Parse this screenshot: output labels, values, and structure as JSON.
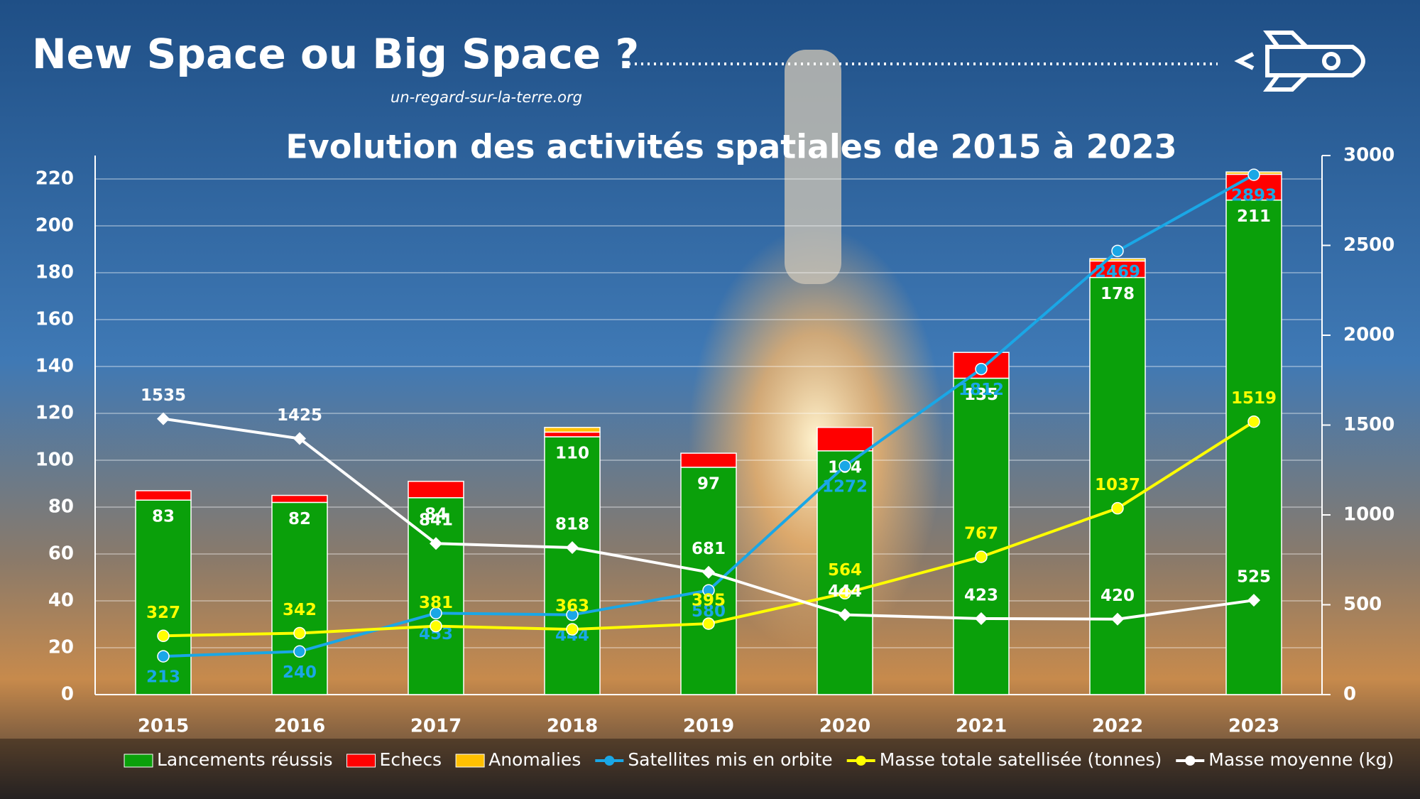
{
  "title": "New Space ou Big Space ?",
  "site": "un-regard-sur-la-terre.org",
  "chart_data": {
    "type": "bar",
    "stacked": true,
    "title": "Evolution des activités spatiales de 2015 à 2023",
    "categories": [
      "2015",
      "2016",
      "2017",
      "2018",
      "2019",
      "2020",
      "2021",
      "2022",
      "2023"
    ],
    "series": [
      {
        "name": "Lancements réussis",
        "color": "#0aa00a",
        "values": [
          83,
          82,
          84,
          110,
          97,
          104,
          135,
          178,
          211
        ]
      },
      {
        "name": "Echecs",
        "color": "#ff0000",
        "values": [
          4,
          3,
          7,
          2,
          6,
          10,
          11,
          7,
          11
        ]
      },
      {
        "name": "Anomalies",
        "color": "#ffc000",
        "values": [
          0,
          0,
          0,
          2,
          0,
          0,
          0,
          1,
          1
        ]
      },
      {
        "name": "Satellites mis en orbite",
        "type": "line",
        "axis": "y2",
        "color": "#1aa7e6",
        "values": [
          213,
          240,
          453,
          444,
          580,
          1272,
          1812,
          2469,
          2893
        ]
      },
      {
        "name": "Masse totale satellisée (tonnes)",
        "type": "line",
        "axis": "y2",
        "color": "#ffff00",
        "values": [
          327,
          342,
          381,
          363,
          395,
          564,
          767,
          1037,
          1519
        ]
      },
      {
        "name": "Masse moyenne (kg)",
        "type": "line",
        "axis": "y2",
        "color": "#ffffff",
        "values": [
          1535,
          1425,
          841,
          818,
          681,
          444,
          423,
          420,
          525
        ]
      }
    ],
    "ylim": [
      0,
      230
    ],
    "yticks": [
      0,
      20,
      40,
      60,
      80,
      100,
      120,
      140,
      160,
      180,
      200,
      220
    ],
    "y2lim": [
      0,
      3000
    ],
    "y2ticks": [
      0,
      500,
      1000,
      1500,
      2000,
      2500,
      3000
    ],
    "grid": true,
    "legend": "bottom"
  }
}
